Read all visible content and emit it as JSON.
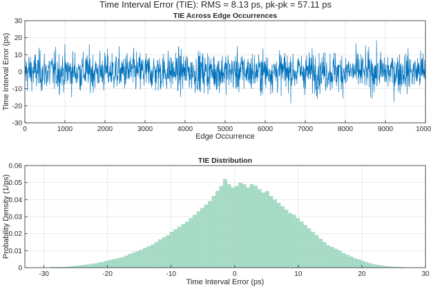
{
  "figure": {
    "title": "Time Interval Error (TIE): RMS = 8.13 ps, pk-pk = 57.11 ps"
  },
  "colors": {
    "tie_line": "#0072BD",
    "histogram_fill": "#A8DCC7",
    "histogram_edge": "#8ECDB4",
    "grid": "#DFDFDF",
    "axes": "#262626"
  },
  "chart_data": [
    {
      "type": "line",
      "title": "TIE Across Edge Occurrences",
      "xlabel": "Edge Occurrence",
      "ylabel": "Time Interval Error (ps)",
      "xlim": [
        0,
        10000
      ],
      "ylim": [
        -30,
        30
      ],
      "xticks": [
        0,
        1000,
        2000,
        3000,
        4000,
        5000,
        6000,
        7000,
        8000,
        9000,
        10000
      ],
      "yticks": [
        -30,
        -20,
        -10,
        0,
        10,
        20,
        30
      ],
      "grid": true,
      "series": [
        {
          "rms": 8.13,
          "pk_pk": 57.11,
          "n_points": 10000,
          "x": [
            0,
            500,
            1000,
            1500,
            2000,
            2500,
            3000,
            3500,
            4000,
            4500,
            5000,
            5500,
            6000,
            6500,
            7000,
            7500,
            8000,
            8500,
            9000,
            9500,
            10000
          ],
          "upper_envelope": [
            22,
            24,
            21,
            23,
            24,
            22,
            25,
            23,
            22,
            24,
            23,
            22,
            24,
            23,
            22,
            24,
            23,
            22,
            24,
            26,
            25
          ],
          "lower_envelope": [
            -22,
            -21,
            -23,
            -22,
            -24,
            -21,
            -22,
            -23,
            -22,
            -21,
            -24,
            -22,
            -21,
            -22,
            -23,
            -22,
            -21,
            -23,
            -22,
            -24,
            -27
          ]
        }
      ]
    },
    {
      "type": "bar",
      "title": "TIE Distribution",
      "xlabel": "Time Interval Error (ps)",
      "ylabel": "Probability Density (1/ps)",
      "xlim": [
        -33,
        30
      ],
      "ylim": [
        0,
        0.06
      ],
      "xticks": [
        -30,
        -20,
        -10,
        0,
        10,
        20,
        30
      ],
      "yticks": [
        0,
        0.01,
        0.02,
        0.03,
        0.04,
        0.05,
        0.06
      ],
      "grid": true,
      "bin_width": 0.6,
      "bin_centers": [
        -28.5,
        -27.9,
        -27.3,
        -26.7,
        -26.1,
        -25.5,
        -24.9,
        -24.3,
        -23.7,
        -23.1,
        -22.5,
        -21.9,
        -21.3,
        -20.7,
        -20.1,
        -19.5,
        -18.9,
        -18.3,
        -17.7,
        -17.1,
        -16.5,
        -15.9,
        -15.3,
        -14.7,
        -14.1,
        -13.5,
        -12.9,
        -12.3,
        -11.7,
        -11.1,
        -10.5,
        -9.9,
        -9.3,
        -8.7,
        -8.1,
        -7.5,
        -6.9,
        -6.3,
        -5.7,
        -5.1,
        -4.5,
        -3.9,
        -3.3,
        -2.7,
        -2.1,
        -1.5,
        -0.9,
        -0.3,
        0.3,
        0.9,
        1.5,
        2.1,
        2.7,
        3.3,
        3.9,
        4.5,
        5.1,
        5.7,
        6.3,
        6.9,
        7.5,
        8.1,
        8.7,
        9.3,
        9.9,
        10.5,
        11.1,
        11.7,
        12.3,
        12.9,
        13.5,
        14.1,
        14.7,
        15.3,
        15.9,
        16.5,
        17.1,
        17.7,
        18.3,
        18.9,
        19.5,
        20.1,
        20.7,
        21.3,
        21.9,
        22.5,
        23.1,
        23.7,
        24.3,
        24.9,
        25.5,
        26.1,
        26.7
      ],
      "density": [
        0.0003,
        0.0003,
        0.0004,
        0.0004,
        0.0005,
        0.0008,
        0.001,
        0.0013,
        0.0015,
        0.0018,
        0.0022,
        0.0024,
        0.003,
        0.0034,
        0.004,
        0.0046,
        0.005,
        0.0055,
        0.006,
        0.007,
        0.008,
        0.0088,
        0.0095,
        0.0105,
        0.0115,
        0.0125,
        0.0135,
        0.015,
        0.0165,
        0.0178,
        0.019,
        0.021,
        0.0225,
        0.024,
        0.0255,
        0.027,
        0.029,
        0.031,
        0.033,
        0.035,
        0.037,
        0.039,
        0.042,
        0.045,
        0.048,
        0.052,
        0.049,
        0.047,
        0.048,
        0.05,
        0.049,
        0.047,
        0.049,
        0.048,
        0.046,
        0.044,
        0.045,
        0.042,
        0.04,
        0.038,
        0.036,
        0.034,
        0.032,
        0.031,
        0.029,
        0.027,
        0.025,
        0.023,
        0.021,
        0.019,
        0.017,
        0.015,
        0.013,
        0.012,
        0.011,
        0.01,
        0.0085,
        0.0075,
        0.0065,
        0.0055,
        0.0048,
        0.004,
        0.0032,
        0.0025,
        0.002,
        0.0015,
        0.0012,
        0.0009,
        0.0007,
        0.0005,
        0.0004,
        0.0003,
        0.0002
      ]
    }
  ]
}
